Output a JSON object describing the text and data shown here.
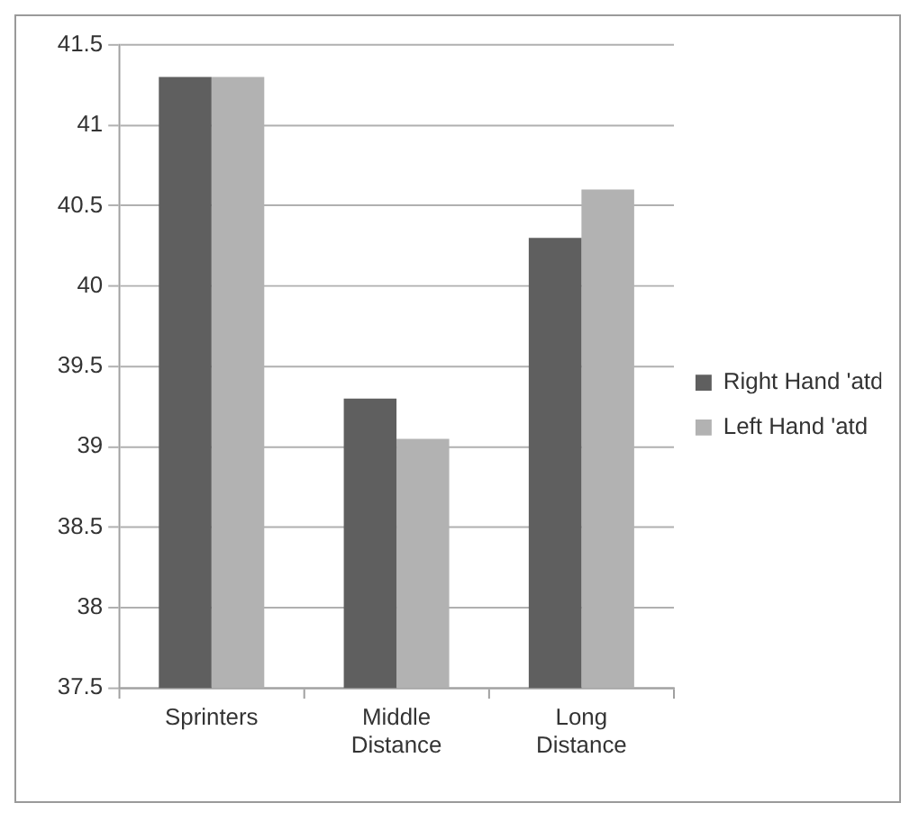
{
  "chart_data": {
    "type": "bar",
    "categories": [
      "Sprinters",
      "Middle Distance",
      "Long Distance"
    ],
    "series": [
      {
        "name": "Right Hand 'atd",
        "color": "#5f5f5f",
        "values": [
          41.3,
          39.3,
          40.3
        ]
      },
      {
        "name": "Left Hand 'atd",
        "color": "#b2b2b2",
        "values": [
          41.3,
          39.05,
          40.6
        ]
      }
    ],
    "ylim": [
      37.5,
      41.5
    ],
    "yticks": [
      37.5,
      38,
      38.5,
      39,
      39.5,
      40,
      40.5,
      41,
      41.5
    ],
    "grid": "y",
    "legend": "right"
  }
}
